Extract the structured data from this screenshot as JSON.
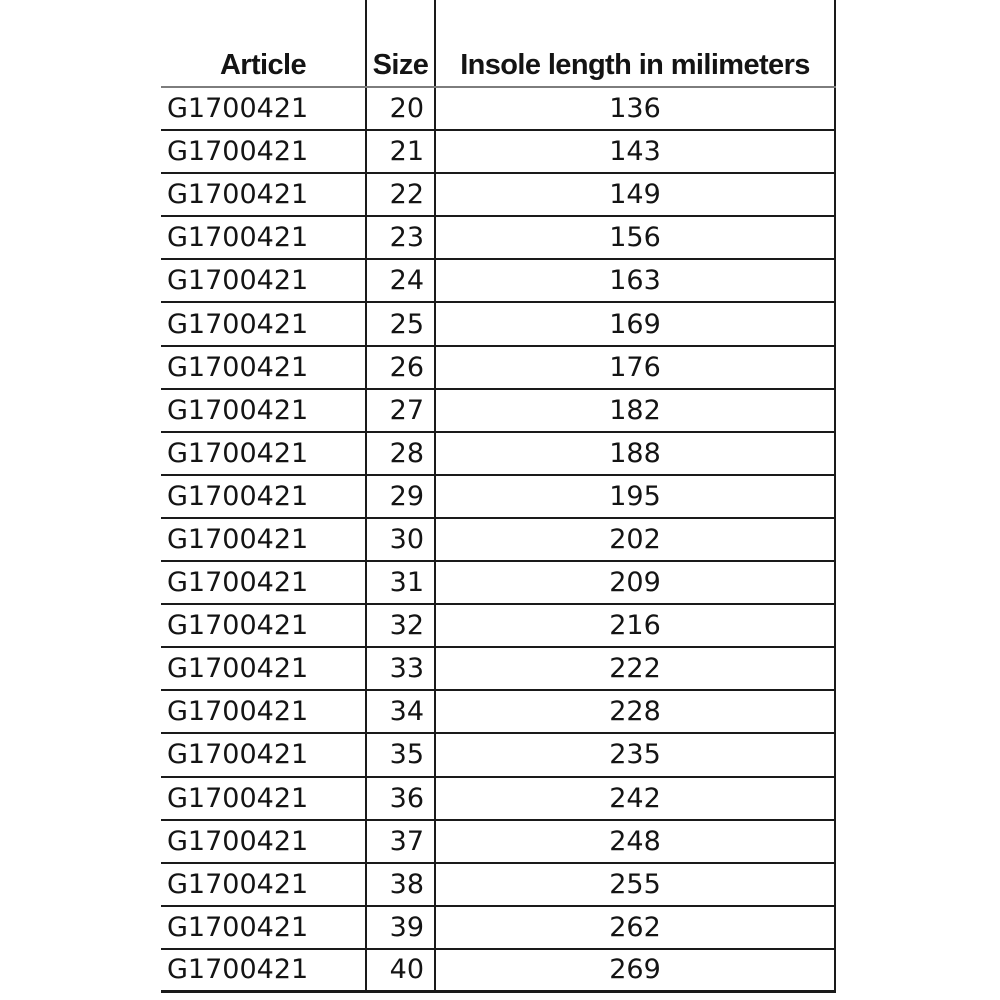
{
  "colors": {
    "text": "#141414",
    "border": "#1a1a1a",
    "header_rule": "#7d7d7d",
    "background": "#ffffff"
  },
  "table": {
    "headers": {
      "article": "Article",
      "size": "Size",
      "insole": "Insole length in milimeters"
    },
    "rows": [
      {
        "article": "G1700421",
        "size": "20",
        "insole": "136"
      },
      {
        "article": "G1700421",
        "size": "21",
        "insole": "143"
      },
      {
        "article": "G1700421",
        "size": "22",
        "insole": "149"
      },
      {
        "article": "G1700421",
        "size": "23",
        "insole": "156"
      },
      {
        "article": "G1700421",
        "size": "24",
        "insole": "163"
      },
      {
        "article": "G1700421",
        "size": "25",
        "insole": "169"
      },
      {
        "article": "G1700421",
        "size": "26",
        "insole": "176"
      },
      {
        "article": "G1700421",
        "size": "27",
        "insole": "182"
      },
      {
        "article": "G1700421",
        "size": "28",
        "insole": "188"
      },
      {
        "article": "G1700421",
        "size": "29",
        "insole": "195"
      },
      {
        "article": "G1700421",
        "size": "30",
        "insole": "202"
      },
      {
        "article": "G1700421",
        "size": "31",
        "insole": "209"
      },
      {
        "article": "G1700421",
        "size": "32",
        "insole": "216"
      },
      {
        "article": "G1700421",
        "size": "33",
        "insole": "222"
      },
      {
        "article": "G1700421",
        "size": "34",
        "insole": "228"
      },
      {
        "article": "G1700421",
        "size": "35",
        "insole": "235"
      },
      {
        "article": "G1700421",
        "size": "36",
        "insole": "242"
      },
      {
        "article": "G1700421",
        "size": "37",
        "insole": "248"
      },
      {
        "article": "G1700421",
        "size": "38",
        "insole": "255"
      },
      {
        "article": "G1700421",
        "size": "39",
        "insole": "262"
      },
      {
        "article": "G1700421",
        "size": "40",
        "insole": "269"
      }
    ]
  }
}
